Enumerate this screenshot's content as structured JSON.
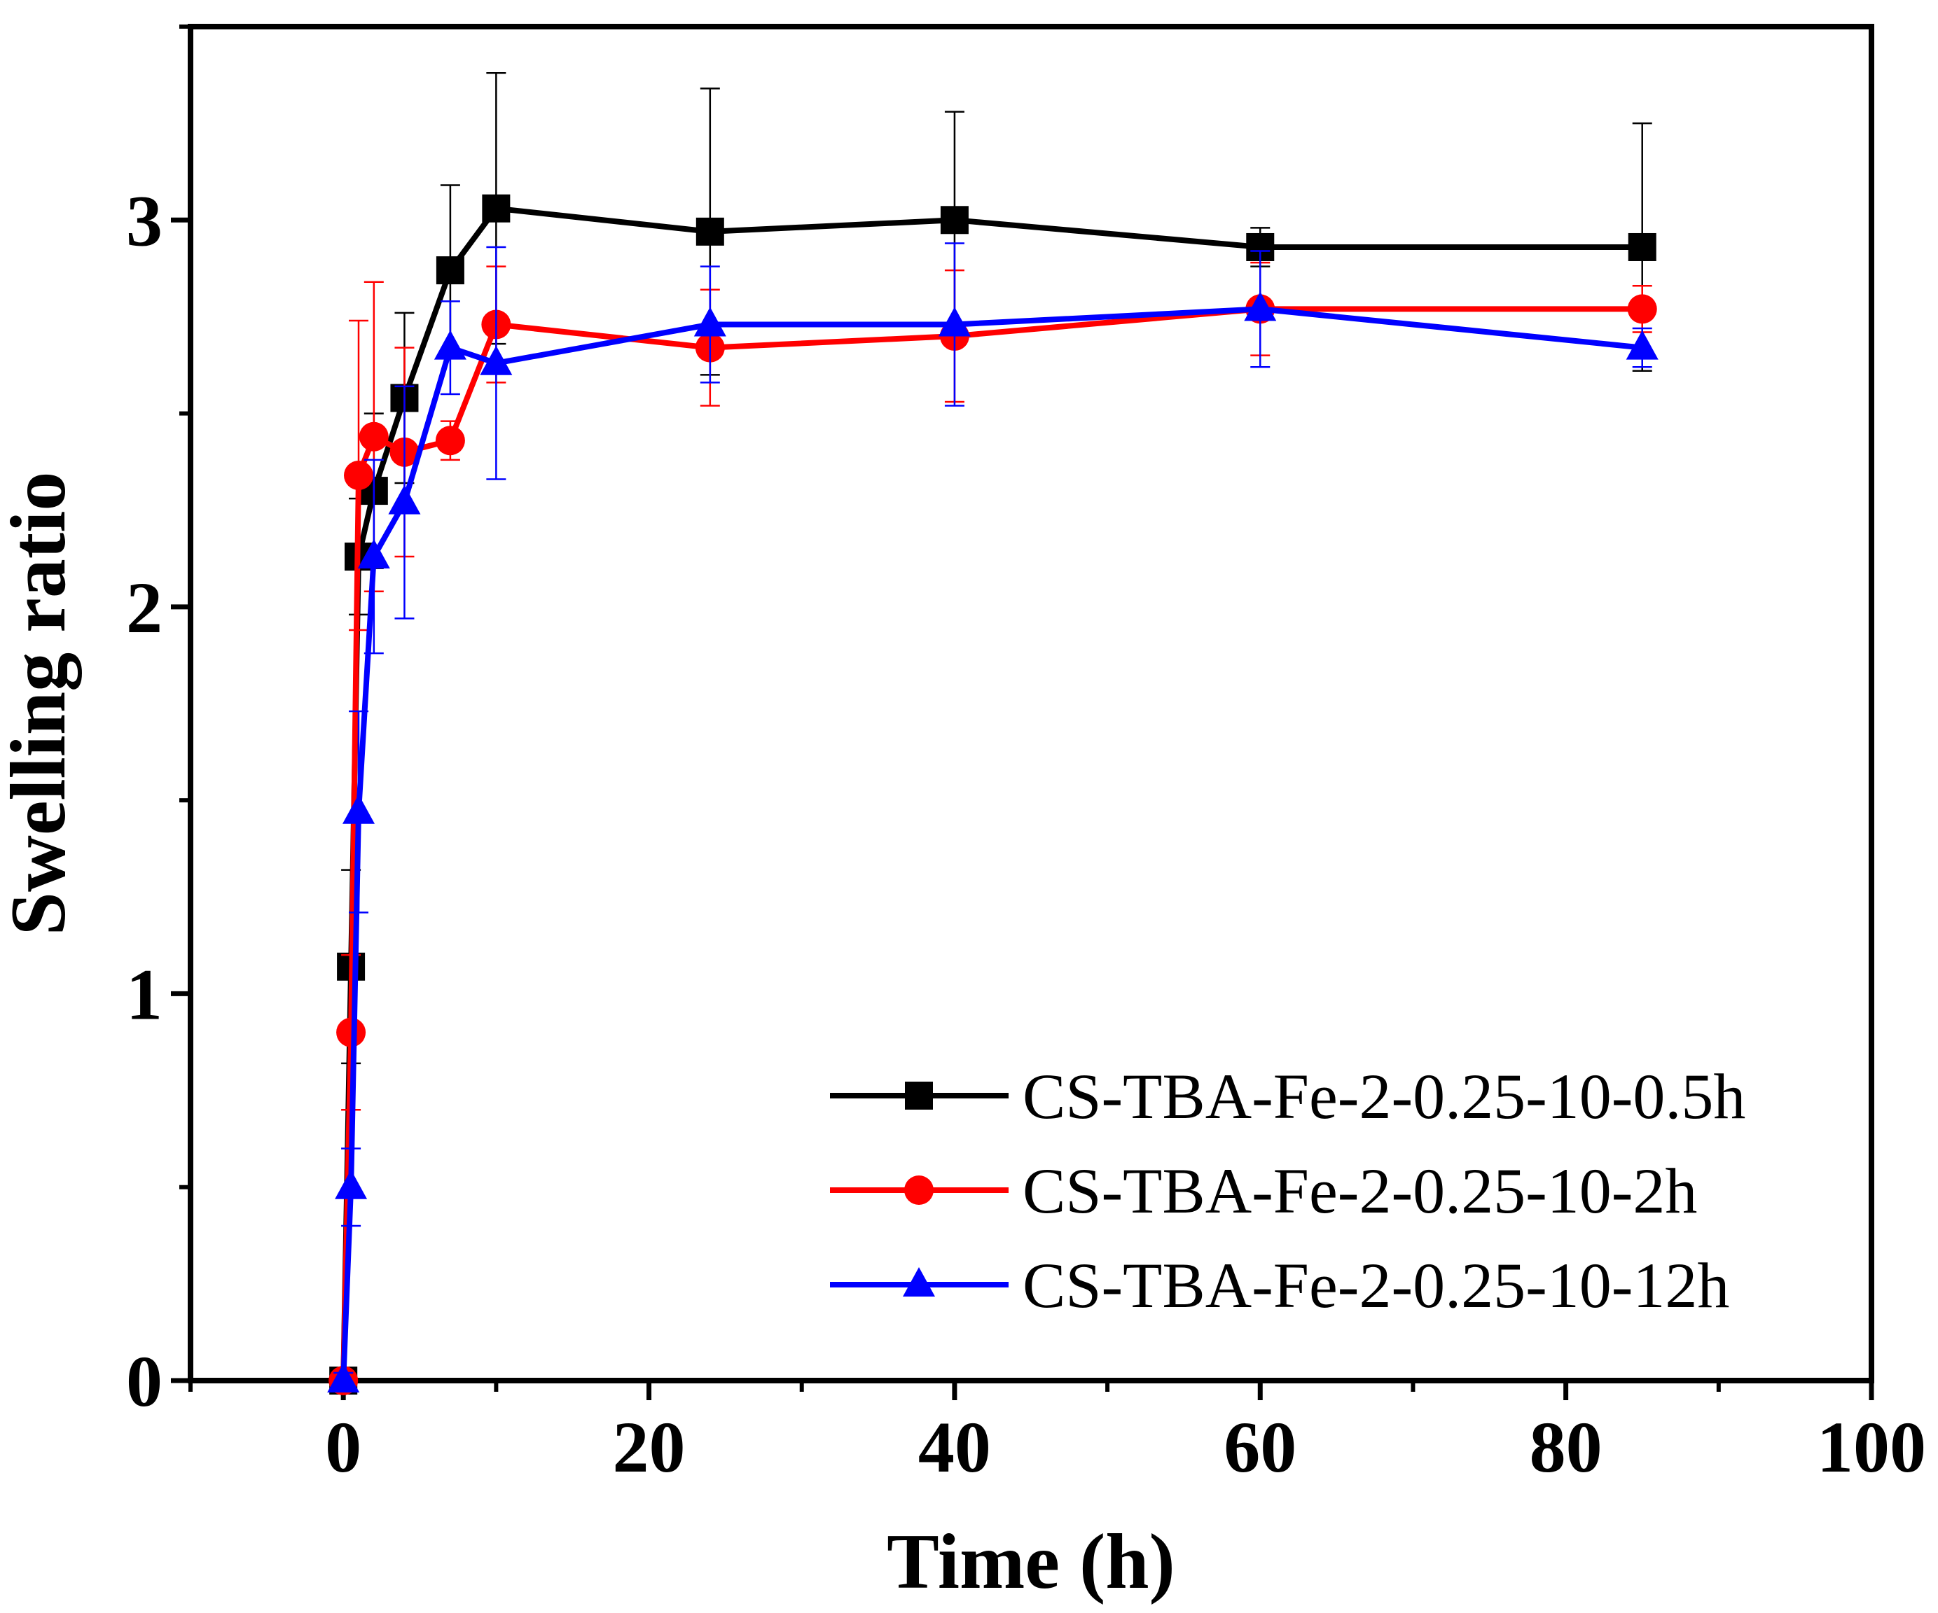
{
  "chart_data": {
    "type": "line",
    "title": "",
    "xlabel": "Time (h)",
    "ylabel": "Swelling ratio",
    "xlim": [
      -10,
      100
    ],
    "ylim": [
      0,
      3.5
    ],
    "x_ticks": [
      0,
      20,
      40,
      60,
      80,
      100
    ],
    "x_minor_ticks": [
      -10,
      10,
      30,
      50,
      70,
      90
    ],
    "y_ticks": [
      0,
      1,
      2,
      3
    ],
    "y_minor_ticks": [
      0.5,
      1.5,
      2.5,
      3.5
    ],
    "legend_position": "bottom-right",
    "grid": false,
    "series": [
      {
        "name": "CS-TBA-Fe-2-0.25-10-0.5h",
        "color": "#000000",
        "marker": "square",
        "x": [
          0,
          0.5,
          1,
          2,
          4,
          7,
          10,
          24,
          40,
          60,
          85
        ],
        "y": [
          0,
          1.07,
          2.13,
          2.3,
          2.54,
          2.87,
          3.03,
          2.97,
          3.0,
          2.93,
          2.93
        ],
        "err": [
          0.02,
          0.25,
          0.15,
          0.2,
          0.22,
          0.22,
          0.35,
          0.37,
          0.28,
          0.05,
          0.32
        ]
      },
      {
        "name": "CS-TBA-Fe-2-0.25-10-2h",
        "color": "#ff0000",
        "marker": "circle",
        "x": [
          0,
          0.5,
          1,
          2,
          4,
          7,
          10,
          24,
          40,
          60,
          85
        ],
        "y": [
          0,
          0.9,
          2.34,
          2.44,
          2.4,
          2.43,
          2.73,
          2.67,
          2.7,
          2.77,
          2.77
        ],
        "err": [
          0.02,
          0.2,
          0.4,
          0.4,
          0.27,
          0.05,
          0.15,
          0.15,
          0.17,
          0.12,
          0.06
        ]
      },
      {
        "name": "CS-TBA-Fe-2-0.25-10-12h",
        "color": "#0000ff",
        "marker": "triangle",
        "x": [
          0,
          0.5,
          1,
          2,
          4,
          7,
          10,
          24,
          40,
          60,
          85
        ],
        "y": [
          0,
          0.5,
          1.47,
          2.13,
          2.27,
          2.67,
          2.63,
          2.73,
          2.73,
          2.77,
          2.67
        ],
        "err": [
          0.02,
          0.1,
          0.26,
          0.25,
          0.3,
          0.12,
          0.3,
          0.15,
          0.21,
          0.15,
          0.05
        ]
      }
    ]
  }
}
